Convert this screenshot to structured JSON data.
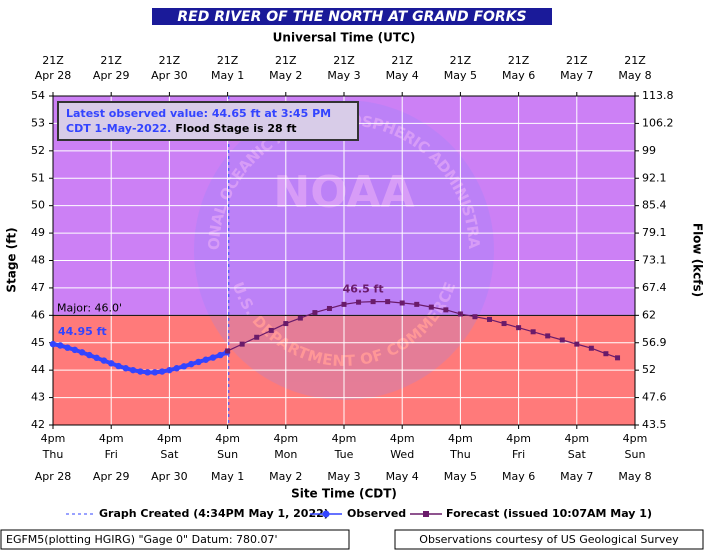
{
  "chart_data": {
    "type": "hydrograph",
    "title": "RED RIVER OF THE NORTH AT GRAND FORKS",
    "top_axis_label": "Universal Time (UTC)",
    "xlabel": "Site Time (CDT)",
    "ylabel": "Stage (ft)",
    "y2label": "Flow (kcfs)",
    "xlim": [
      0,
      10
    ],
    "ylim": [
      42,
      54
    ],
    "yticks": [
      42,
      43,
      44,
      45,
      46,
      47,
      48,
      49,
      50,
      51,
      52,
      53,
      54
    ],
    "y2ticks": [
      43.5,
      47.6,
      52.0,
      56.9,
      62.0,
      67.4,
      73.1,
      79.1,
      85.4,
      92.1,
      99.0,
      106.2,
      113.8
    ],
    "xticks": [
      {
        "value": 0,
        "label": "4pm",
        "day": "Thu",
        "date": "Apr 28"
      },
      {
        "value": 1,
        "label": "4pm",
        "day": "Fri",
        "date": "Apr 29"
      },
      {
        "value": 2,
        "label": "4pm",
        "day": "Sat",
        "date": "Apr 30"
      },
      {
        "value": 3,
        "label": "4pm",
        "day": "Sun",
        "date": "May 1"
      },
      {
        "value": 4,
        "label": "4pm",
        "day": "Mon",
        "date": "May 2"
      },
      {
        "value": 5,
        "label": "4pm",
        "day": "Tue",
        "date": "May 3"
      },
      {
        "value": 6,
        "label": "4pm",
        "day": "Wed",
        "date": "May 4"
      },
      {
        "value": 7,
        "label": "4pm",
        "day": "Thu",
        "date": "May 5"
      },
      {
        "value": 8,
        "label": "4pm",
        "day": "Fri",
        "date": "May 6"
      },
      {
        "value": 9,
        "label": "4pm",
        "day": "Sat",
        "date": "May 7"
      },
      {
        "value": 10,
        "label": "4pm",
        "day": "Sun",
        "date": "May 8"
      }
    ],
    "top_xticks": [
      {
        "value": 0,
        "label": "21Z",
        "date": "Apr 28"
      },
      {
        "value": 1,
        "label": "21Z",
        "date": "Apr 29"
      },
      {
        "value": 2,
        "label": "21Z",
        "date": "Apr 30"
      },
      {
        "value": 3,
        "label": "21Z",
        "date": "May 1"
      },
      {
        "value": 4,
        "label": "21Z",
        "date": "May 2"
      },
      {
        "value": 5,
        "label": "21Z",
        "date": "May 3"
      },
      {
        "value": 6,
        "label": "21Z",
        "date": "May 4"
      },
      {
        "value": 7,
        "label": "21Z",
        "date": "May 5"
      },
      {
        "value": 8,
        "label": "21Z",
        "date": "May 6"
      },
      {
        "value": 9,
        "label": "21Z",
        "date": "May 7"
      },
      {
        "value": 10,
        "label": "21Z",
        "date": "May 8"
      }
    ],
    "grid": true,
    "flood_categories": [
      {
        "label": "Major: 46.0'",
        "value": 46,
        "color_above": "#cc80f5",
        "color_below": "#ff7a7a"
      }
    ],
    "graph_created": {
      "x": 3.02,
      "label": "Graph Created (4:34PM May 1, 2022)",
      "color": "#3344ff"
    },
    "series": [
      {
        "name": "Observed",
        "color": "#3344ff",
        "x": [
          0,
          0.125,
          0.25,
          0.375,
          0.5,
          0.625,
          0.75,
          0.875,
          1.0,
          1.125,
          1.25,
          1.375,
          1.5,
          1.625,
          1.75,
          1.875,
          2.0,
          2.125,
          2.25,
          2.375,
          2.5,
          2.625,
          2.75,
          2.875,
          2.99
        ],
        "values": [
          44.95,
          44.9,
          44.82,
          44.74,
          44.65,
          44.55,
          44.45,
          44.35,
          44.25,
          44.15,
          44.07,
          44.0,
          43.95,
          43.92,
          43.92,
          43.95,
          44.0,
          44.07,
          44.14,
          44.22,
          44.3,
          44.38,
          44.46,
          44.55,
          44.65
        ]
      },
      {
        "name": "Forecast (issued 10:07AM May 1)",
        "color": "#6a1b6a",
        "x": [
          3.0,
          3.25,
          3.5,
          3.75,
          4.0,
          4.25,
          4.5,
          4.75,
          5.0,
          5.25,
          5.5,
          5.75,
          6.0,
          6.25,
          6.5,
          6.75,
          7.0,
          7.25,
          7.5,
          7.75,
          8.0,
          8.25,
          8.5,
          8.75,
          9.0,
          9.25,
          9.5,
          9.7
        ],
        "values": [
          44.7,
          44.95,
          45.2,
          45.45,
          45.7,
          45.9,
          46.1,
          46.25,
          46.4,
          46.48,
          46.5,
          46.5,
          46.45,
          46.4,
          46.3,
          46.2,
          46.05,
          45.95,
          45.85,
          45.7,
          45.55,
          45.4,
          45.25,
          45.1,
          44.95,
          44.8,
          44.6,
          44.45
        ]
      }
    ],
    "annotations": [
      {
        "text": "44.95 ft",
        "x": 0,
        "y": 44.95,
        "color": "#3344ff"
      },
      {
        "text": "46.5 ft",
        "x": 5.5,
        "y": 46.5,
        "color": "#6a1b6a"
      }
    ],
    "info": {
      "line1": "Latest observed value: 44.65 ft at 3:45 PM",
      "line2": "CDT 1-May-2022.",
      "line2b": "Flood Stage is 28 ft"
    },
    "watermark": {
      "center": "NOAA",
      "top": "NATIONAL OCEANIC AND ATMOSPHERIC ADMINISTRATION",
      "bottom": "U.S. DEPARTMENT OF COMMERCE"
    },
    "footer_left": "EGFM5(plotting HGIRG) \"Gage 0\" Datum: 780.07'",
    "footer_right": "Observations courtesy of US Geological Survey"
  }
}
